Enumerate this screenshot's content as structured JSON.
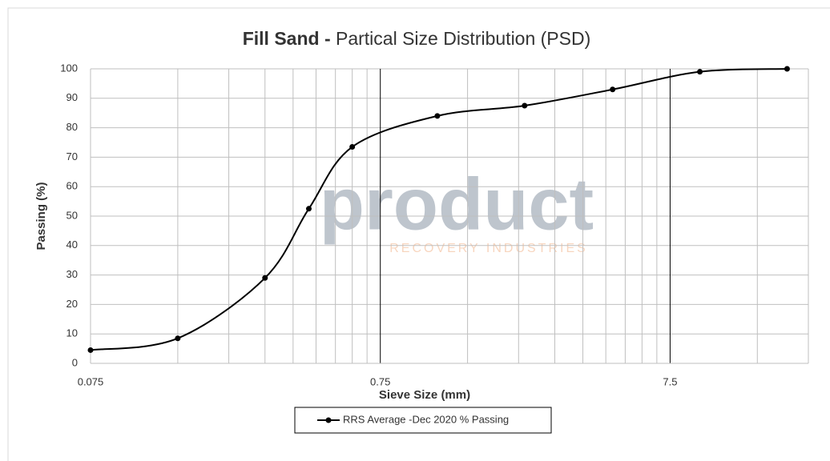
{
  "chart_data": {
    "type": "line",
    "title_bold": "Fill Sand -",
    "title": "Partical Size Distribution (PSD)",
    "x_label": "Sieve Size (mm)",
    "y_label": "Passing (%)",
    "watermark": [
      "product",
      "RECOVERY INDUSTRIES"
    ],
    "x": [
      0.075,
      0.15,
      0.3,
      0.425,
      0.6,
      1.18,
      2.36,
      4.75,
      9.5,
      19
    ],
    "series": [
      {
        "name": "RRS Average -Dec 2020 % Passing",
        "color": "#000000",
        "values": [
          4.5,
          8.5,
          29,
          52.5,
          73.5,
          84,
          87.5,
          93,
          99,
          100
        ]
      }
    ],
    "xlim": [
      0.075,
      22.5
    ],
    "xticks": [
      0.075,
      0.75,
      7.5
    ],
    "xscale": "log",
    "ylim": [
      0,
      100
    ],
    "yticks": [
      0,
      10,
      20,
      30,
      40,
      50,
      60,
      70,
      80,
      90,
      100
    ],
    "grid": true,
    "legend": "bottom"
  }
}
